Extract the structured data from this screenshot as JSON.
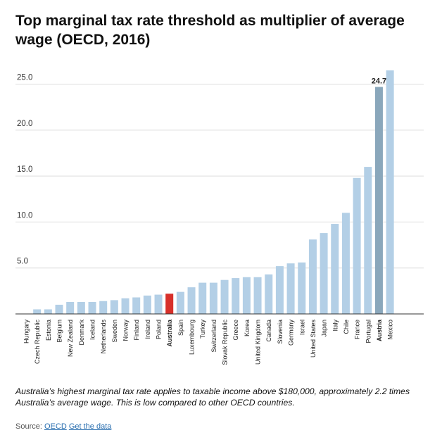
{
  "title": "Top marginal tax rate threshold as multiplier of average wage (OECD, 2016)",
  "note": "Australia’s highest marginal tax rate applies to taxable income above $180,000, approximately 2.2 times Australia’s average wage. This is low compared to other OECD countries.",
  "source": {
    "label": "Source:",
    "link1": "OECD",
    "link2": "Get the data"
  },
  "colors": {
    "bar": "#b3cfe6",
    "australia": "#d7302a",
    "austria": "#8aa7bb",
    "grid": "#dddddd",
    "axis": "#333333"
  },
  "chart_data": {
    "type": "bar",
    "title": "Top marginal tax rate threshold as multiplier of average wage (OECD, 2016)",
    "xlabel": "",
    "ylabel": "",
    "ylim": [
      0,
      26.5
    ],
    "yticks": [
      "5.0",
      "10.0",
      "15.0",
      "20.0",
      "25.0"
    ],
    "grid": true,
    "categories": [
      "Hungary",
      "Czech Republic",
      "Estonia",
      "Belgium",
      "New Zealand",
      "Denmark",
      "Iceland",
      "Netherlands",
      "Sweden",
      "Norway",
      "Finland",
      "Ireland",
      "Poland",
      "Australia",
      "Spain",
      "Luxembourg",
      "Turkey",
      "Switzerland",
      "Slovak Republic",
      "Greece",
      "Korea",
      "United Kingdom",
      "Canada",
      "Slovenia",
      "Germany",
      "Israel",
      "United States",
      "Japan",
      "Italy",
      "Chile",
      "France",
      "Portugal",
      "Austria",
      "Mexico"
    ],
    "values": [
      0,
      0.5,
      0.5,
      1.0,
      1.3,
      1.3,
      1.3,
      1.4,
      1.5,
      1.7,
      1.8,
      2.0,
      2.1,
      2.2,
      2.4,
      2.9,
      3.4,
      3.4,
      3.7,
      3.9,
      4.0,
      4.0,
      4.3,
      5.2,
      5.5,
      5.6,
      8.1,
      8.8,
      9.8,
      11.0,
      14.8,
      16.0,
      24.7,
      26.5
    ],
    "highlight": {
      "Australia": "australia",
      "Austria": "austria"
    },
    "data_labels": [
      {
        "category": "Austria",
        "text": "24.7"
      }
    ]
  }
}
